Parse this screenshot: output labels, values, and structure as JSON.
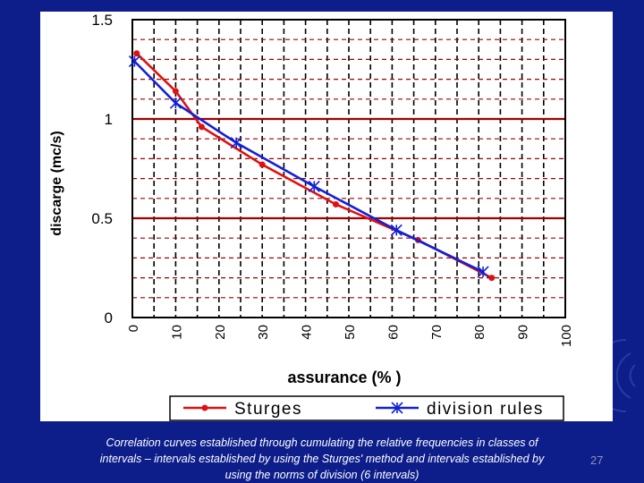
{
  "colors": {
    "background": "#0d1e8a",
    "panel": "#ffffff",
    "grid_major": "#a00000",
    "grid_minor": "#a00000",
    "sturges": "#e01010",
    "division_rules": "#1020d8"
  },
  "chart_data": {
    "type": "line",
    "xlabel": "assurance  (% )",
    "ylabel": "discarge (mc/s)",
    "xlim": [
      0,
      100
    ],
    "ylim": [
      0,
      1.5
    ],
    "x_ticks": [
      "0",
      "10",
      "20",
      "30",
      "40",
      "50",
      "60",
      "70",
      "80",
      "90",
      "100"
    ],
    "y_ticks": [
      "0",
      "0.5",
      "1",
      "1.5"
    ],
    "grid": true,
    "legend_position": "bottom",
    "series": [
      {
        "name": "Sturges",
        "marker": "dot",
        "color": "#e01010",
        "x": [
          1,
          10,
          16,
          30,
          47,
          66,
          83
        ],
        "y": [
          1.33,
          1.14,
          0.96,
          0.77,
          0.57,
          0.39,
          0.2
        ]
      },
      {
        "name": "division rules",
        "marker": "star",
        "color": "#1020d8",
        "x": [
          0.5,
          10,
          24,
          42,
          61,
          81
        ],
        "y": [
          1.29,
          1.08,
          0.88,
          0.66,
          0.44,
          0.23
        ]
      }
    ]
  },
  "caption": {
    "line1": "Correlation curves established through cumulating the relative frequencies in classes of",
    "line2": "intervals – intervals established by using the Sturges' method and intervals established by",
    "line3": "using the norms of division (6 intervals)"
  },
  "slide_number": "27"
}
